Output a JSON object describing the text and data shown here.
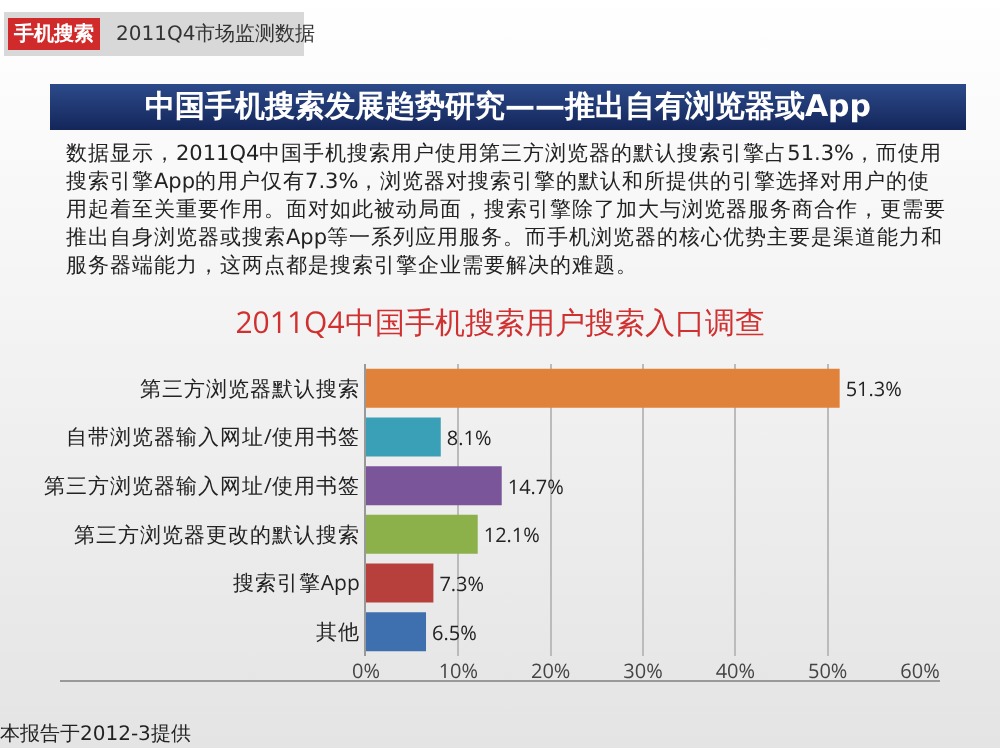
{
  "chart_data": {
    "type": "bar",
    "orientation": "horizontal",
    "title": "中国手机搜索发展趋势研究——推出自有浏览器或App",
    "subtitle": "2011Q4中国手机搜索用户搜索入口调查",
    "annotations": [
      "手机搜索",
      "2011Q4市场监测数据",
      "数据显示，2011Q4中国手机搜索用户使用第三方浏览器的默认搜索引擎占51.3%，而使用搜索引擎App的用户仅有7.3%，浏览器对搜索引擎的默认和所提供的引擎选择对用户的使用起着至关重要作用。面对如此被动局面，搜索引擎除了加大与浏览器服务商合作，更需要推出自身浏览器或搜索App等一系列应用服务。而手机浏览器的核心优势主要是渠道能力和服务器端能力，这两点都是搜索引擎企业需要解决的难题。",
      "本报告于2012-3提供"
    ],
    "categories": [
      "第三方浏览器默认搜索",
      "自带浏览器输入网址/使用书签",
      "第三方浏览器输入网址/使用书签",
      "第三方浏览器更改的默认搜索",
      "搜索引擎App",
      "其他"
    ],
    "values": [
      51.3,
      8.1,
      14.7,
      12.1,
      7.3,
      6.5
    ],
    "colors": [
      "#e0823a",
      "#3aa0b8",
      "#7a559a",
      "#8cb04a",
      "#b8403c",
      "#3e70b0"
    ],
    "value_labels": [
      "51.3%",
      "8.1%",
      "14.7%",
      "12.1%",
      "7.3%",
      "6.5%"
    ],
    "xlim": [
      0,
      60
    ],
    "xticks": [
      {
        "value": 0,
        "label": "0%"
      },
      {
        "value": 10,
        "label": "10%"
      },
      {
        "value": 20,
        "label": "20%"
      },
      {
        "value": 30,
        "label": "30%"
      },
      {
        "value": 40,
        "label": "40%"
      },
      {
        "value": 50,
        "label": "50%"
      },
      {
        "value": 60,
        "label": "60%"
      }
    ],
    "grid": "x"
  }
}
